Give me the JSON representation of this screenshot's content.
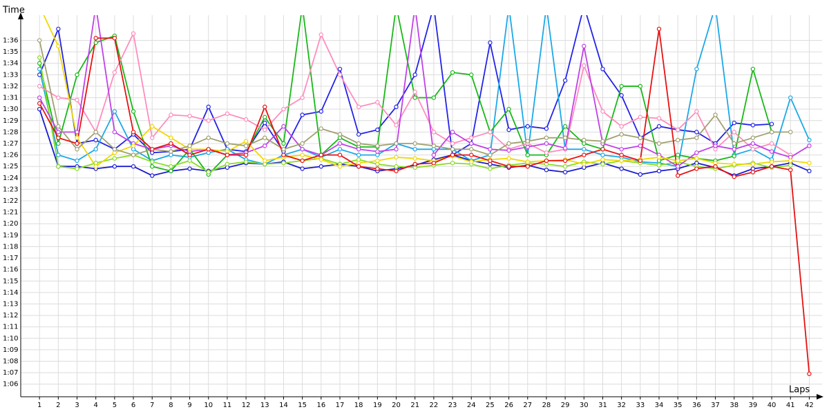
{
  "chart_data": {
    "type": "line",
    "y_label": "Time",
    "x_label": "Laps",
    "x": [
      1,
      2,
      3,
      4,
      5,
      6,
      7,
      8,
      9,
      10,
      11,
      12,
      13,
      14,
      15,
      16,
      17,
      18,
      19,
      20,
      21,
      22,
      23,
      24,
      25,
      26,
      27,
      28,
      29,
      30,
      31,
      32,
      33,
      34,
      35,
      36,
      37,
      38,
      39,
      40,
      41,
      42
    ],
    "xlim": [
      0,
      42.5
    ],
    "ylim": [
      64.9,
      98.2
    ],
    "yticks": [
      {
        "value": 66,
        "label": "1:06"
      },
      {
        "value": 67,
        "label": "1:07"
      },
      {
        "value": 68,
        "label": "1:08"
      },
      {
        "value": 69,
        "label": "1:09"
      },
      {
        "value": 70,
        "label": "1:10"
      },
      {
        "value": 71,
        "label": "1:11"
      },
      {
        "value": 72,
        "label": "1:12"
      },
      {
        "value": 73,
        "label": "1:13"
      },
      {
        "value": 74,
        "label": "1:14"
      },
      {
        "value": 75,
        "label": "1:15"
      },
      {
        "value": 76,
        "label": "1:16"
      },
      {
        "value": 77,
        "label": "1:17"
      },
      {
        "value": 78,
        "label": "1:18"
      },
      {
        "value": 79,
        "label": "1:19"
      },
      {
        "value": 80,
        "label": "1:20"
      },
      {
        "value": 81,
        "label": "1:21"
      },
      {
        "value": 82,
        "label": "1:22"
      },
      {
        "value": 83,
        "label": "1:23"
      },
      {
        "value": 84,
        "label": "1:24"
      },
      {
        "value": 85,
        "label": "1:25"
      },
      {
        "value": 86,
        "label": "1:26"
      },
      {
        "value": 87,
        "label": "1:27"
      },
      {
        "value": 88,
        "label": "1:28"
      },
      {
        "value": 89,
        "label": "1:29"
      },
      {
        "value": 90,
        "label": "1:30"
      },
      {
        "value": 91,
        "label": "1:31"
      },
      {
        "value": 92,
        "label": "1:32"
      },
      {
        "value": 93,
        "label": "1:33"
      },
      {
        "value": 94,
        "label": "1:34"
      },
      {
        "value": 95,
        "label": "1:35"
      },
      {
        "value": 96,
        "label": "1:36"
      }
    ],
    "grid": true,
    "series": [
      {
        "color": "#1a1ad0",
        "values": [
          90,
          85,
          85,
          84.8,
          85,
          85,
          84.2,
          84.6,
          84.8,
          84.6,
          84.9,
          85.3,
          85.2,
          85.4,
          84.8,
          85,
          85.2,
          85,
          84.6,
          84.8,
          85.1,
          85.6,
          86,
          85.5,
          85.2,
          84.9,
          85.1,
          84.7,
          84.5,
          84.9,
          85.3,
          84.8,
          84.3,
          84.6,
          84.8,
          85.3,
          84.9,
          84.2,
          84.8,
          85,
          85.3,
          84.6
        ]
      },
      {
        "color": "#2222e8",
        "values": [
          93,
          97,
          87,
          87.3,
          86.5,
          87.8,
          86.2,
          86.3,
          86.5,
          90.2,
          86.5,
          86.3,
          88.8,
          86.3,
          89.5,
          89.8,
          93.5,
          87.8,
          88.2,
          90.2,
          93,
          99,
          86,
          87,
          95.8,
          88.2,
          88.5,
          88.3,
          92.5,
          99,
          93.5,
          91.2,
          87.5,
          88.5,
          88.2,
          88,
          87,
          88.8,
          88.6,
          88.7,
          null,
          null
        ]
      },
      {
        "color": "#1aa8e8",
        "values": [
          93.5,
          86,
          85.5,
          86.5,
          89.8,
          86.5,
          85.5,
          86,
          85.8,
          86.2,
          86.5,
          85.6,
          85.2,
          86,
          86.5,
          85.8,
          86.5,
          86,
          86,
          87,
          86.5,
          86.5,
          86.5,
          85.5,
          86,
          99,
          86,
          99,
          86.5,
          86.5,
          86,
          85.8,
          85.4,
          85.3,
          85,
          93.5,
          99,
          86,
          86.5,
          85.6,
          91,
          87.3
        ]
      },
      {
        "color": "#18b818",
        "values": [
          94,
          87,
          93,
          95.8,
          96.4,
          89.8,
          85,
          84.6,
          86.5,
          84.3,
          86,
          86.2,
          89.3,
          87,
          99,
          86,
          87.5,
          86.7,
          86.7,
          99,
          91,
          91,
          93.2,
          93,
          88,
          90,
          86,
          86,
          88.5,
          87,
          86.5,
          92,
          92,
          85.5,
          86,
          85.7,
          85.5,
          85.9,
          93.5,
          88,
          null,
          null
        ]
      },
      {
        "color": "#88dd22",
        "values": [
          94.5,
          85,
          84.8,
          85.3,
          85.7,
          86,
          85.4,
          85,
          85.5,
          84.5,
          85.2,
          85.4,
          85.2,
          85.3,
          85.5,
          85.7,
          85.2,
          85.6,
          85.2,
          85,
          84.9,
          85.1,
          85.3,
          85.2,
          84.8,
          85.1,
          85.3,
          85.2,
          85,
          85.4,
          85.2,
          85.5,
          85.3,
          85.1,
          85.4,
          85,
          84.8,
          85.1,
          85.3,
          84.9,
          85.1,
          null
        ]
      },
      {
        "color": "#ff8cbe",
        "values": [
          92,
          91,
          90.8,
          88,
          93.2,
          96.6,
          87.5,
          89.5,
          89.4,
          89,
          89.6,
          89.1,
          88.2,
          90,
          91,
          96.5,
          93,
          90.2,
          90.6,
          88.6,
          91.5,
          88,
          87,
          87.5,
          88,
          86.5,
          87,
          86.2,
          86.5,
          93.8,
          89.8,
          88.5,
          89.3,
          89.2,
          88.2,
          89.8,
          86.5,
          88,
          86.5,
          87,
          86,
          null
        ]
      },
      {
        "color": "#c040e8",
        "values": [
          91,
          88,
          88,
          99,
          88,
          87,
          86.5,
          86.8,
          86.3,
          86.5,
          86,
          86.2,
          86.8,
          88.5,
          86.5,
          86,
          87,
          86.5,
          86.3,
          86.5,
          99,
          86,
          88,
          87,
          86.5,
          86.4,
          86.7,
          87,
          86.6,
          95.5,
          87,
          86.5,
          86.8,
          86,
          85,
          86.2,
          86.8,
          86.5,
          87,
          86.3,
          85.8,
          86.8
        ]
      },
      {
        "color": "#f0d800",
        "values": [
          99,
          95.5,
          87.5,
          85,
          86.2,
          86.8,
          88.5,
          87.5,
          86.5,
          86.5,
          86.3,
          87.2,
          85.5,
          85.8,
          86,
          85.6,
          85,
          85.3,
          85.5,
          85.8,
          85.7,
          85.5,
          85.9,
          85.4,
          85.6,
          85.7,
          85.4,
          85.5,
          85.6,
          85.2,
          85.6,
          85.5,
          85.6,
          85.8,
          85.5,
          85.7,
          85.3,
          85.2,
          85.2,
          85.4,
          85.5,
          85.3
        ]
      },
      {
        "color": "#a0a070",
        "values": [
          96,
          88.5,
          86.5,
          88,
          86.5,
          86,
          86.5,
          86.3,
          86.8,
          87.5,
          87,
          86.8,
          87.5,
          86.5,
          87,
          88.3,
          87.8,
          87,
          86.8,
          87,
          87,
          86.8,
          86.5,
          86.5,
          86,
          87,
          87.2,
          87.5,
          87.5,
          87.3,
          87.2,
          87.8,
          87.5,
          87,
          87.3,
          87.5,
          89.5,
          87,
          87.5,
          88,
          88,
          null
        ]
      },
      {
        "color": "#e81010",
        "values": [
          90.5,
          87.5,
          87,
          96.2,
          96.2,
          88,
          86.5,
          87,
          86,
          86.5,
          86,
          86,
          90.2,
          86,
          85.5,
          86,
          86,
          85,
          84.8,
          84.6,
          85.2,
          85.3,
          86,
          86,
          85.5,
          85,
          85,
          85.5,
          85.5,
          86,
          86.5,
          86,
          85.5,
          97,
          84.2,
          84.8,
          85,
          84.1,
          84.5,
          85,
          84.7,
          66.9
        ]
      }
    ]
  }
}
